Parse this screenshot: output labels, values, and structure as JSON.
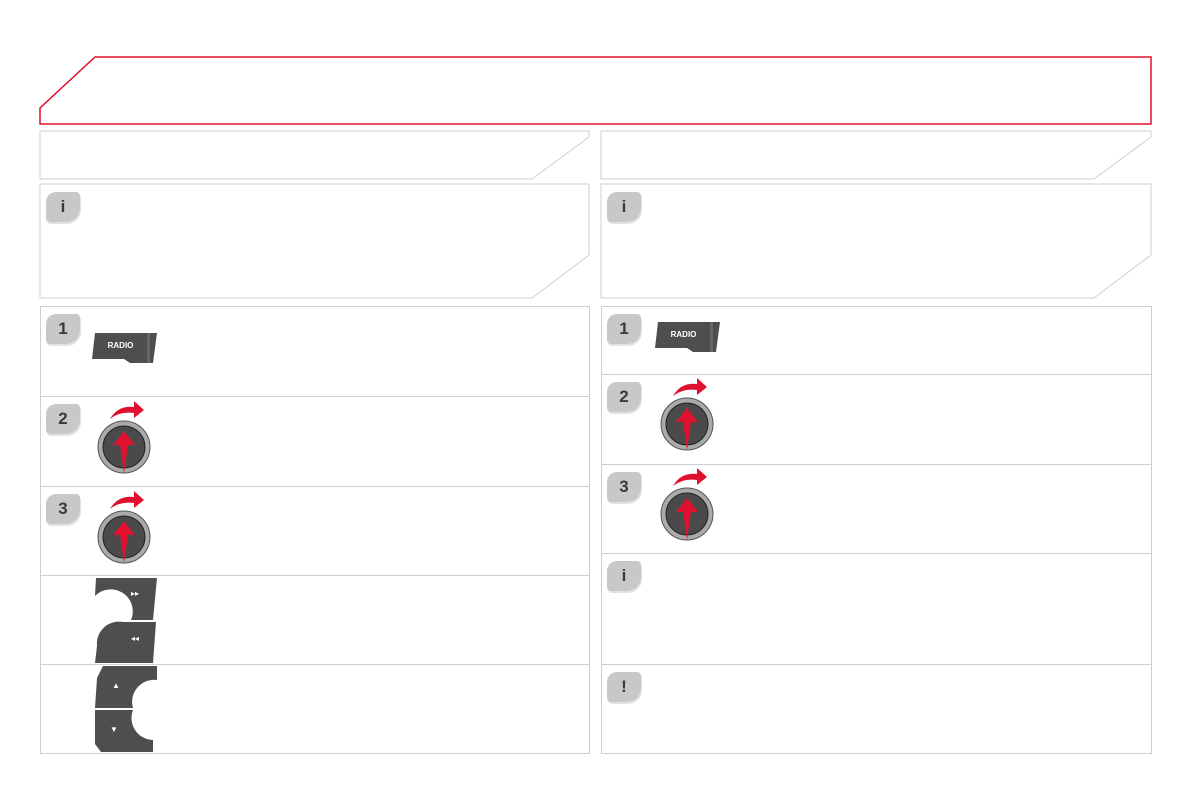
{
  "header": {
    "border_color": "#e0102f"
  },
  "left": {
    "info_badge": "i",
    "steps": [
      {
        "badge": "1",
        "button": "RADIO"
      },
      {
        "badge": "2",
        "control": "rotary-knob"
      },
      {
        "badge": "3",
        "control": "rotary-knob"
      },
      {
        "badge": "",
        "buttons": [
          {
            "glyph": "▸▸"
          },
          {
            "glyph": "◂◂"
          }
        ]
      },
      {
        "badge": "",
        "buttons": [
          {
            "glyph": "▲"
          },
          {
            "glyph": "▼"
          }
        ]
      }
    ]
  },
  "right": {
    "info_badge": "i",
    "steps": [
      {
        "badge": "1",
        "button": "RADIO"
      },
      {
        "badge": "2",
        "control": "rotary-knob"
      },
      {
        "badge": "3",
        "control": "rotary-knob"
      }
    ],
    "note_badge": "i",
    "warning_badge": "!"
  },
  "colors": {
    "accent": "#e0102f",
    "button": "#4a4a4a",
    "badge": "#c8c8c8"
  }
}
